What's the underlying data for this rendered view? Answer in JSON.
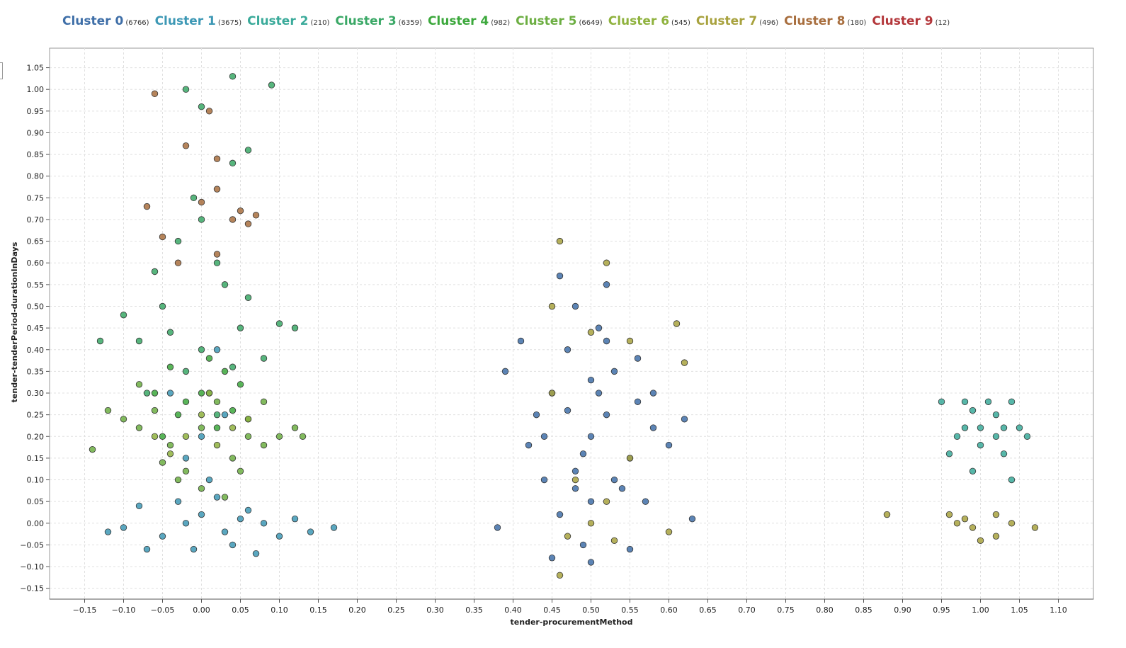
{
  "chart_data": {
    "type": "scatter",
    "title": "",
    "xlabel": "tender-procurementMethod",
    "ylabel": "tender-tenderPeriod-durationInDays",
    "xlim": [
      -0.195,
      1.145
    ],
    "ylim": [
      -0.175,
      1.095
    ],
    "x_ticks": [
      -0.15,
      -0.1,
      -0.05,
      0.0,
      0.05,
      0.1,
      0.15,
      0.2,
      0.25,
      0.3,
      0.35,
      0.4,
      0.45,
      0.5,
      0.55,
      0.6,
      0.65,
      0.7,
      0.75,
      0.8,
      0.85,
      0.9,
      0.95,
      1.0,
      1.05,
      1.1
    ],
    "y_ticks": [
      -0.15,
      -0.1,
      -0.05,
      0.0,
      0.05,
      0.1,
      0.15,
      0.2,
      0.25,
      0.3,
      0.35,
      0.4,
      0.45,
      0.5,
      0.55,
      0.6,
      0.65,
      0.7,
      0.75,
      0.8,
      0.85,
      0.9,
      0.95,
      1.0,
      1.05
    ],
    "grid": true,
    "legend_position": "top",
    "series": [
      {
        "name": "Cluster 0",
        "count": "(6766)",
        "color": "#3f6fa8",
        "points": [
          [
            0.5,
            0.2
          ],
          [
            0.48,
            0.12
          ],
          [
            0.52,
            0.25
          ],
          [
            0.45,
            0.3
          ],
          [
            0.55,
            0.15
          ],
          [
            0.5,
            0.05
          ],
          [
            0.47,
            0.4
          ],
          [
            0.53,
            0.35
          ],
          [
            0.44,
            0.1
          ],
          [
            0.58,
            0.22
          ],
          [
            0.42,
            0.18
          ],
          [
            0.51,
            0.45
          ],
          [
            0.49,
            -0.05
          ],
          [
            0.56,
            0.28
          ],
          [
            0.46,
            0.02
          ],
          [
            0.54,
            0.08
          ],
          [
            0.5,
            0.33
          ],
          [
            0.43,
            0.25
          ],
          [
            0.57,
            0.05
          ],
          [
            0.48,
            0.5
          ],
          [
            0.52,
            0.55
          ],
          [
            0.46,
            0.57
          ],
          [
            0.38,
            -0.01
          ],
          [
            0.41,
            0.42
          ],
          [
            0.6,
            0.18
          ],
          [
            0.63,
            0.01
          ],
          [
            0.62,
            0.24
          ],
          [
            0.39,
            0.35
          ],
          [
            0.45,
            -0.08
          ],
          [
            0.5,
            -0.09
          ],
          [
            0.55,
            -0.06
          ],
          [
            0.47,
            0.26
          ],
          [
            0.53,
            0.1
          ],
          [
            0.51,
            0.3
          ],
          [
            0.49,
            0.16
          ],
          [
            0.44,
            0.2
          ],
          [
            0.56,
            0.38
          ],
          [
            0.58,
            0.3
          ],
          [
            0.48,
            0.08
          ],
          [
            0.52,
            0.42
          ]
        ]
      },
      {
        "name": "Cluster 1",
        "count": "(3675)",
        "color": "#3d98b5",
        "points": [
          [
            0.0,
            0.02
          ],
          [
            -0.03,
            0.05
          ],
          [
            0.03,
            -0.02
          ],
          [
            0.02,
            0.06
          ],
          [
            -0.05,
            -0.03
          ],
          [
            0.05,
            0.01
          ],
          [
            -0.01,
            -0.06
          ],
          [
            0.08,
            0.0
          ],
          [
            -0.08,
            0.04
          ],
          [
            0.01,
            0.1
          ],
          [
            0.04,
            -0.05
          ],
          [
            -0.02,
            0.0
          ],
          [
            0.06,
            0.03
          ],
          [
            -0.1,
            -0.01
          ],
          [
            0.1,
            -0.03
          ],
          [
            0.12,
            0.01
          ],
          [
            -0.12,
            -0.02
          ],
          [
            0.14,
            -0.02
          ],
          [
            0.17,
            -0.01
          ],
          [
            0.0,
            0.2
          ],
          [
            -0.04,
            0.3
          ],
          [
            0.03,
            0.25
          ],
          [
            0.02,
            0.4
          ],
          [
            -0.02,
            0.15
          ],
          [
            0.07,
            -0.07
          ],
          [
            -0.07,
            -0.06
          ]
        ]
      },
      {
        "name": "Cluster 2",
        "count": "(210)",
        "color": "#3aaa9a",
        "points": [
          [
            0.95,
            0.28
          ],
          [
            0.99,
            0.26
          ],
          [
            1.02,
            0.25
          ],
          [
            1.05,
            0.22
          ],
          [
            0.97,
            0.2
          ],
          [
            1.0,
            0.18
          ],
          [
            1.03,
            0.16
          ],
          [
            0.98,
            0.22
          ],
          [
            1.01,
            0.28
          ],
          [
            1.04,
            0.28
          ],
          [
            1.06,
            0.2
          ],
          [
            0.96,
            0.16
          ],
          [
            0.99,
            0.12
          ],
          [
            1.04,
            0.1
          ],
          [
            1.02,
            0.2
          ],
          [
            0.98,
            0.28
          ],
          [
            1.0,
            0.22
          ],
          [
            1.03,
            0.22
          ]
        ]
      },
      {
        "name": "Cluster 3",
        "count": "(6359)",
        "color": "#3aa866",
        "points": [
          [
            0.0,
            0.4
          ],
          [
            -0.05,
            0.5
          ],
          [
            0.02,
            0.6
          ],
          [
            -0.02,
            0.35
          ],
          [
            0.05,
            0.45
          ],
          [
            -0.08,
            0.42
          ],
          [
            0.08,
            0.38
          ],
          [
            0.03,
            0.55
          ],
          [
            -0.03,
            0.65
          ],
          [
            0.0,
            0.7
          ],
          [
            -0.06,
            0.58
          ],
          [
            0.06,
            0.52
          ],
          [
            -0.1,
            0.48
          ],
          [
            0.1,
            0.46
          ],
          [
            0.01,
            0.3
          ],
          [
            -0.04,
            0.44
          ],
          [
            0.04,
            0.36
          ],
          [
            -0.01,
            0.75
          ],
          [
            0.04,
            0.83
          ],
          [
            0.06,
            0.86
          ],
          [
            -0.02,
            1.0
          ],
          [
            0.0,
            0.96
          ],
          [
            0.04,
            1.03
          ],
          [
            0.09,
            1.01
          ],
          [
            -0.13,
            0.42
          ],
          [
            0.12,
            0.45
          ],
          [
            0.02,
            0.25
          ],
          [
            -0.07,
            0.3
          ]
        ]
      },
      {
        "name": "Cluster 4",
        "count": "(982)",
        "color": "#3ca83c",
        "points": [
          [
            0.0,
            0.3
          ],
          [
            -0.03,
            0.25
          ],
          [
            0.03,
            0.35
          ],
          [
            0.02,
            0.22
          ],
          [
            -0.02,
            0.28
          ],
          [
            0.05,
            0.32
          ],
          [
            -0.05,
            0.2
          ],
          [
            0.01,
            0.38
          ],
          [
            0.04,
            0.26
          ],
          [
            -0.04,
            0.36
          ],
          [
            0.06,
            0.24
          ],
          [
            -0.06,
            0.3
          ]
        ]
      },
      {
        "name": "Cluster 5",
        "count": "(6649)",
        "color": "#6cae42",
        "points": [
          [
            0.0,
            0.22
          ],
          [
            -0.04,
            0.18
          ],
          [
            0.04,
            0.15
          ],
          [
            0.02,
            0.28
          ],
          [
            -0.02,
            0.12
          ],
          [
            0.06,
            0.2
          ],
          [
            -0.06,
            0.26
          ],
          [
            0.08,
            0.18
          ],
          [
            -0.08,
            0.22
          ],
          [
            0.1,
            0.2
          ],
          [
            -0.1,
            0.24
          ],
          [
            0.12,
            0.22
          ],
          [
            -0.12,
            0.26
          ],
          [
            -0.14,
            0.17
          ],
          [
            0.13,
            0.2
          ],
          [
            0.0,
            0.08
          ],
          [
            0.03,
            0.06
          ],
          [
            -0.03,
            0.1
          ],
          [
            0.05,
            0.12
          ],
          [
            -0.05,
            0.14
          ],
          [
            0.08,
            0.28
          ],
          [
            -0.08,
            0.32
          ]
        ]
      },
      {
        "name": "Cluster 6",
        "count": "(545)",
        "color": "#8fb23e",
        "points": [
          [
            0.0,
            0.25
          ],
          [
            -0.02,
            0.2
          ],
          [
            0.02,
            0.18
          ],
          [
            0.04,
            0.22
          ],
          [
            -0.04,
            0.16
          ],
          [
            0.06,
            0.24
          ],
          [
            -0.06,
            0.2
          ],
          [
            0.01,
            0.3
          ]
        ]
      },
      {
        "name": "Cluster 7",
        "count": "(496)",
        "color": "#a8a23e",
        "points": [
          [
            0.46,
            0.65
          ],
          [
            0.52,
            0.6
          ],
          [
            0.61,
            0.46
          ],
          [
            0.62,
            0.37
          ],
          [
            0.45,
            0.5
          ],
          [
            0.5,
            0.44
          ],
          [
            0.55,
            0.42
          ],
          [
            0.48,
            0.1
          ],
          [
            0.52,
            0.05
          ],
          [
            0.5,
            0.0
          ],
          [
            0.47,
            -0.03
          ],
          [
            0.53,
            -0.04
          ],
          [
            0.46,
            -0.12
          ],
          [
            0.6,
            -0.02
          ],
          [
            0.55,
            0.15
          ],
          [
            0.45,
            0.3
          ],
          [
            0.88,
            0.02
          ],
          [
            0.96,
            0.02
          ],
          [
            0.97,
            0.0
          ],
          [
            0.99,
            -0.01
          ],
          [
            1.0,
            -0.04
          ],
          [
            1.02,
            0.02
          ],
          [
            1.04,
            0.0
          ],
          [
            1.02,
            -0.03
          ],
          [
            1.07,
            -0.01
          ],
          [
            0.98,
            0.01
          ]
        ]
      },
      {
        "name": "Cluster 8",
        "count": "(180)",
        "color": "#a86e3e",
        "points": [
          [
            -0.06,
            0.99
          ],
          [
            0.01,
            0.95
          ],
          [
            -0.02,
            0.87
          ],
          [
            0.02,
            0.84
          ],
          [
            -0.07,
            0.73
          ],
          [
            0.0,
            0.74
          ],
          [
            0.05,
            0.72
          ],
          [
            0.04,
            0.7
          ],
          [
            -0.05,
            0.66
          ],
          [
            0.02,
            0.62
          ],
          [
            -0.03,
            0.6
          ],
          [
            0.07,
            0.71
          ],
          [
            0.06,
            0.69
          ],
          [
            0.02,
            0.77
          ]
        ]
      },
      {
        "name": "Cluster 9",
        "count": "(12)",
        "color": "#b3363a",
        "points": []
      }
    ]
  }
}
